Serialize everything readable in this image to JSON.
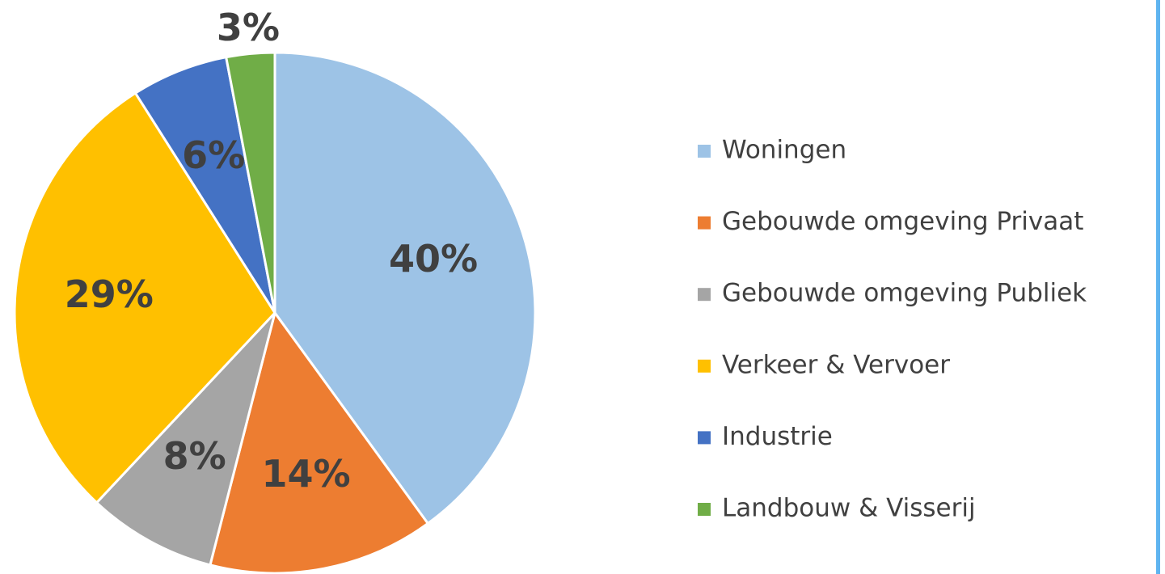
{
  "chart_data": {
    "type": "pie",
    "categories": [
      "Woningen",
      "Gebouwde omgeving Privaat",
      "Gebouwde omgeving Publiek",
      "Verkeer & Vervoer",
      "Industrie",
      "Landbouw & Visserij"
    ],
    "values": [
      40,
      14,
      8,
      29,
      6,
      3
    ],
    "value_labels": [
      "40%",
      "14%",
      "8%",
      "29%",
      "6%",
      "3%"
    ],
    "colors": [
      "#9dc3e6",
      "#ed7d31",
      "#a5a5a5",
      "#ffc000",
      "#4472c4",
      "#70ad47"
    ],
    "legend": "right"
  }
}
